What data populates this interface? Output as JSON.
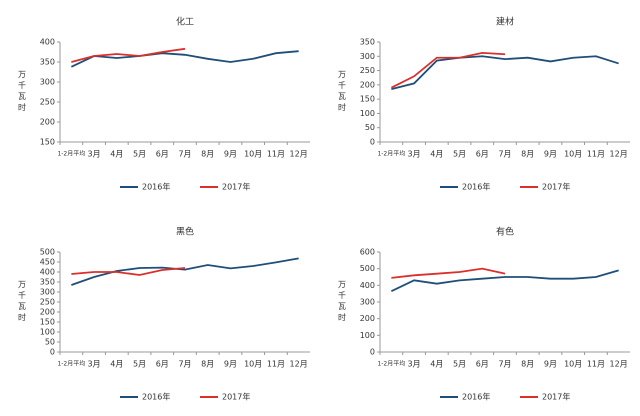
{
  "chart_data": [
    {
      "type": "line",
      "title": "化工",
      "y_label": "万千瓦时",
      "categories": [
        "1-2月平均",
        "3月",
        "4月",
        "5月",
        "6月",
        "7月",
        "8月",
        "9月",
        "10月",
        "11月",
        "12月"
      ],
      "ylim": [
        150,
        400
      ],
      "yticks": [
        150,
        200,
        250,
        300,
        350,
        400
      ],
      "series": [
        {
          "name": "2016年",
          "color": "#1f4e79",
          "values": [
            338,
            365,
            360,
            365,
            372,
            368,
            358,
            350,
            358,
            372,
            377
          ]
        },
        {
          "name": "2017年",
          "color": "#d9302c",
          "values": [
            350,
            365,
            370,
            365,
            375,
            383,
            null,
            null,
            null,
            null,
            null
          ]
        }
      ]
    },
    {
      "type": "line",
      "title": "建材",
      "y_label": "万千瓦时",
      "categories": [
        "1-2月平均",
        "3月",
        "4月",
        "5月",
        "6月",
        "7月",
        "8月",
        "9月",
        "10月",
        "11月",
        "12月"
      ],
      "ylim": [
        0,
        350
      ],
      "yticks": [
        0,
        50,
        100,
        150,
        200,
        250,
        300,
        350
      ],
      "series": [
        {
          "name": "2016年",
          "color": "#1f4e79",
          "values": [
            185,
            205,
            285,
            295,
            300,
            290,
            295,
            282,
            295,
            300,
            275
          ]
        },
        {
          "name": "2017年",
          "color": "#d9302c",
          "values": [
            190,
            230,
            295,
            295,
            312,
            307,
            null,
            null,
            null,
            null,
            null
          ]
        }
      ]
    },
    {
      "type": "line",
      "title": "黑色",
      "y_label": "万千瓦时",
      "categories": [
        "1-2月平均",
        "3月",
        "4月",
        "5月",
        "6月",
        "7月",
        "8月",
        "9月",
        "10月",
        "11月",
        "12月"
      ],
      "ylim": [
        0,
        500
      ],
      "yticks": [
        0,
        50,
        100,
        150,
        200,
        250,
        300,
        350,
        400,
        450,
        500
      ],
      "series": [
        {
          "name": "2016年",
          "color": "#1f4e79",
          "values": [
            335,
            375,
            405,
            420,
            422,
            412,
            435,
            418,
            430,
            448,
            468
          ]
        },
        {
          "name": "2017年",
          "color": "#d9302c",
          "values": [
            390,
            400,
            400,
            385,
            410,
            420,
            null,
            null,
            null,
            null,
            null
          ]
        }
      ]
    },
    {
      "type": "line",
      "title": "有色",
      "y_label": "万千瓦时",
      "categories": [
        "1-2月平均",
        "3月",
        "4月",
        "5月",
        "6月",
        "7月",
        "8月",
        "9月",
        "10月",
        "11月",
        "12月"
      ],
      "ylim": [
        0,
        600
      ],
      "yticks": [
        0,
        100,
        200,
        300,
        400,
        500,
        600
      ],
      "series": [
        {
          "name": "2016年",
          "color": "#1f4e79",
          "values": [
            365,
            430,
            410,
            430,
            440,
            450,
            450,
            440,
            440,
            450,
            490
          ]
        },
        {
          "name": "2017年",
          "color": "#d9302c",
          "values": [
            445,
            460,
            470,
            480,
            500,
            470,
            null,
            null,
            null,
            null,
            null
          ]
        }
      ]
    }
  ]
}
